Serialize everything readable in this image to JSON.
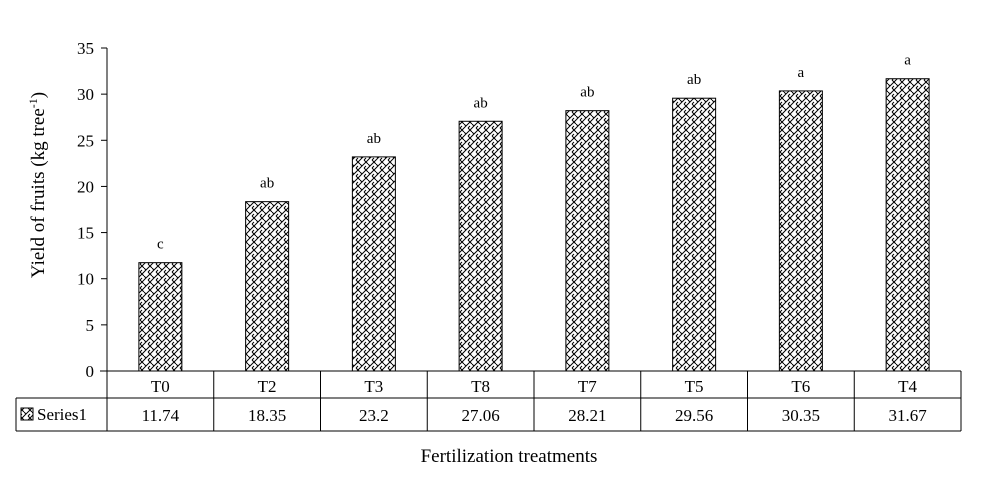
{
  "chart_data": {
    "type": "bar",
    "categories": [
      "T0",
      "T2",
      "T3",
      "T8",
      "T7",
      "T5",
      "T6",
      "T4"
    ],
    "series": [
      {
        "name": "Series1",
        "values": [
          11.74,
          18.35,
          23.2,
          27.06,
          28.21,
          29.56,
          30.35,
          31.67
        ],
        "value_labels": [
          "11.74",
          "18.35",
          "23.2",
          "27.06",
          "28.21",
          "29.56",
          "30.35",
          "31.67"
        ],
        "fill_pattern": "crosshatch-weave",
        "color": "#000000"
      }
    ],
    "significance_letters": [
      "c",
      "ab",
      "ab",
      "ab",
      "ab",
      "ab",
      "a",
      "a"
    ],
    "ylim": [
      0,
      35
    ],
    "yticks": [
      "0",
      "5",
      "10",
      "15",
      "20",
      "25",
      "30",
      "35"
    ],
    "ylabel_main": "Yield of fruits (kg tree",
    "ylabel_sup": "-1",
    "ylabel_end": ")",
    "xlabel": "Fertilization treatments",
    "grid": false,
    "data_table": true
  }
}
